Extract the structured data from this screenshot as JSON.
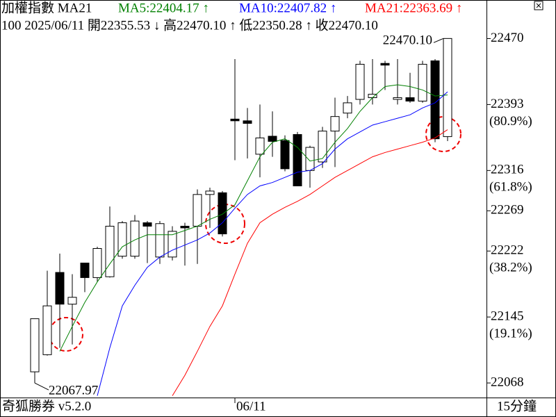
{
  "chart_data": {
    "type": "candlestick",
    "title": "加權指數 MA21",
    "info_line": "100 2025/06/11 開22355.53 ↓ 高22470.10 ↑ 低22350.28 ↑ 收22470.10",
    "software": "奇狐勝券 v5.2.0",
    "period": "15分鐘",
    "categories": [
      null,
      null,
      null,
      null,
      null,
      null,
      null,
      null,
      null,
      null,
      null,
      null,
      null,
      null,
      null,
      null,
      "06/11",
      null,
      null,
      null,
      null,
      null,
      null,
      null,
      null,
      null,
      null,
      null,
      null,
      null,
      null,
      null,
      null,
      null
    ],
    "open": [
      22081,
      22101,
      22197,
      22160,
      22208,
      22191,
      22192,
      22216,
      22216,
      22255,
      22215,
      22215,
      22251,
      22251,
      22288,
      22290,
      22376,
      22374,
      22335,
      22356,
      22351,
      22358,
      22316,
      22326,
      22362,
      22383,
      22399,
      22401,
      22441,
      22399,
      22401,
      22397,
      22444,
      22355.53
    ],
    "high": [
      22143,
      22199,
      22219,
      22195,
      22208,
      22227,
      22274,
      22257,
      22264,
      22257,
      22257,
      22251,
      22255,
      22294,
      22296,
      22292,
      22446,
      22389,
      22393,
      22385,
      22357,
      22361,
      22345,
      22367,
      22401,
      22403,
      22444,
      22446,
      22444,
      22446,
      22430,
      22444,
      22446,
      22470.1
    ],
    "low": [
      22067.97,
      22100,
      22109,
      22113,
      22174,
      22186,
      22191,
      22213,
      22213,
      22208,
      22207,
      22211,
      22205,
      22207,
      22249,
      22239,
      22328,
      22330,
      22308,
      22332,
      22315,
      22298,
      22296,
      22319,
      22320,
      22377,
      22393,
      22393,
      22410,
      22393,
      22395,
      22395,
      22349,
      22350.28
    ],
    "close": [
      22143,
      22158,
      22160,
      22168,
      22191,
      22225,
      22251,
      22255,
      22257,
      22251,
      22254,
      22245,
      22249,
      22288,
      22292,
      22242,
      22374,
      22371,
      22354,
      22350,
      22318,
      22298,
      22343,
      22362,
      22379,
      22395,
      22440,
      22405,
      22439,
      22401,
      22397,
      22440,
      22353,
      22470.1
    ],
    "up_color": "#ffffff",
    "down_color": "#000000",
    "series": [
      {
        "name": "MA5:22404.17 ↑",
        "color": "#008000",
        "values": [
          null,
          null,
          22105,
          22134,
          22162,
          22186,
          22207,
          22227,
          22235,
          22241,
          22241,
          22241,
          22246,
          22251,
          22259,
          22265,
          22276,
          22304,
          22332,
          22349,
          22353,
          22343,
          22327,
          22330,
          22349,
          22365,
          22385,
          22401,
          22414,
          22416,
          22414,
          22410,
          22403,
          22404.17
        ]
      },
      {
        "name": "MA10:22407.82 ↑",
        "color": "#0000ff",
        "values": [
          null,
          null,
          null,
          null,
          null,
          22053,
          22109,
          22158,
          22182,
          22203,
          22215,
          22223,
          22229,
          22235,
          22243,
          22255,
          22272,
          22288,
          22298,
          22302,
          22308,
          22314,
          22316,
          22324,
          22341,
          22353,
          22361,
          22369,
          22373,
          22377,
          22381,
          22389,
          22395,
          22407.82
        ]
      },
      {
        "name": "MA21:22363.69 ↑",
        "color": "#ff0000",
        "values": [
          null,
          null,
          null,
          null,
          null,
          null,
          null,
          null,
          null,
          null,
          null,
          22053,
          22077,
          22105,
          22134,
          22158,
          22195,
          22231,
          22255,
          22265,
          22273,
          22280,
          22288,
          22298,
          22308,
          22316,
          22324,
          22332,
          22337,
          22341,
          22345,
          22349,
          22354,
          22363.69
        ]
      }
    ],
    "high_label": "22470.10",
    "low_label": "22067.97",
    "ylim": [
      22051,
      22515
    ],
    "yticks": [
      22470,
      22393,
      22316,
      22269,
      22222,
      22145,
      22068
    ],
    "fib_labels": [
      null,
      "(80.9%)",
      "(61.8%)",
      null,
      "(38.2%)",
      "(19.1%)",
      null
    ]
  }
}
